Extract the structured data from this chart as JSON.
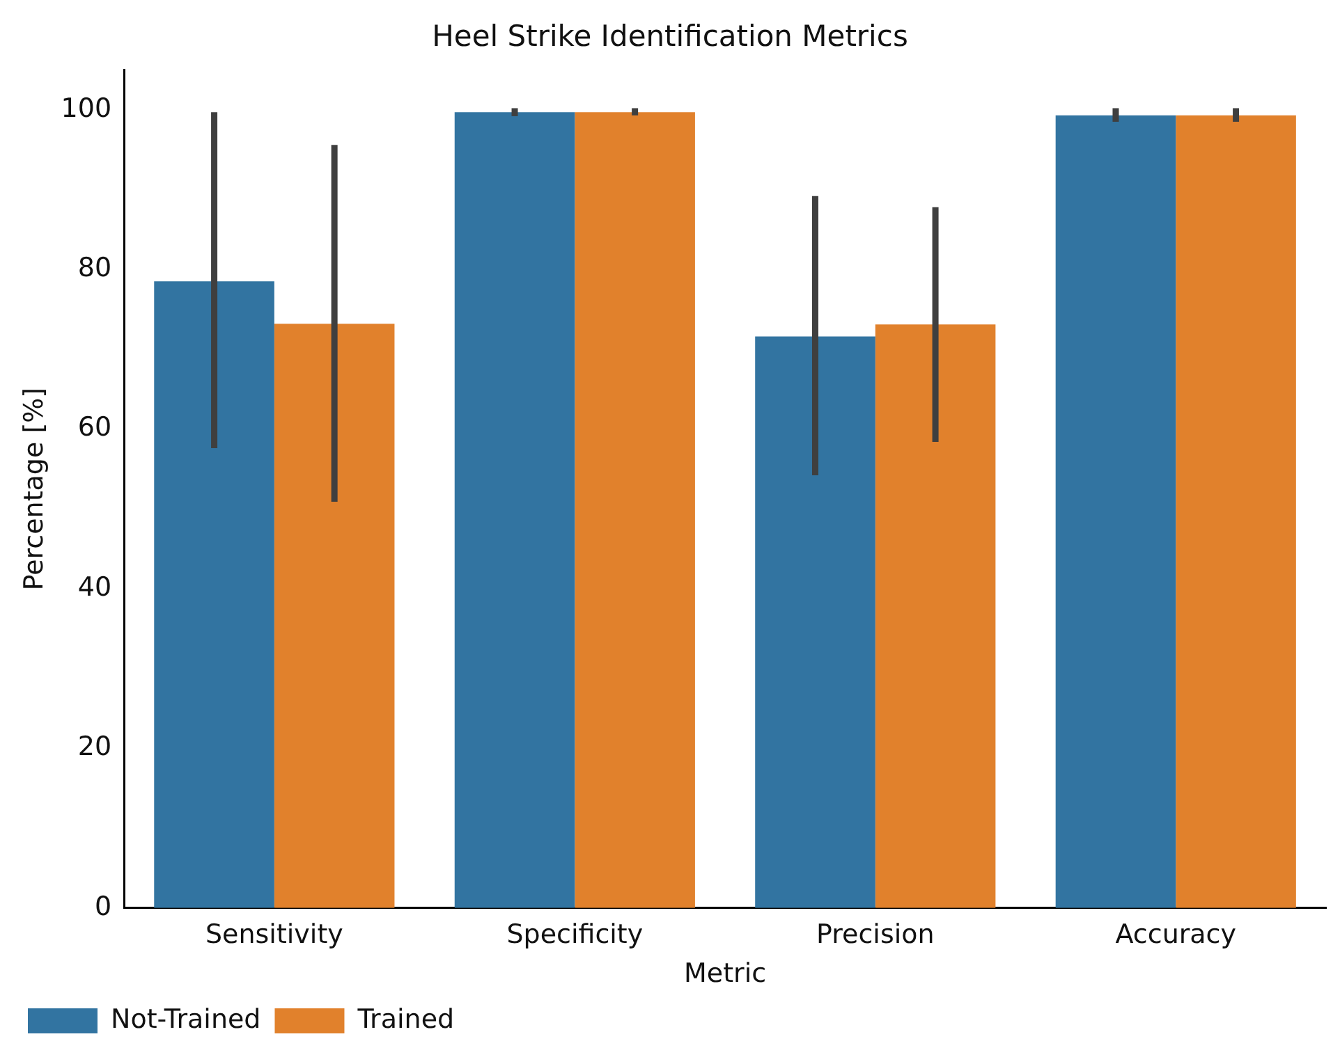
{
  "chart_data": {
    "type": "bar",
    "title": "Heel Strike Identification Metrics",
    "xlabel": "Metric",
    "ylabel": "Percentage [%]",
    "categories": [
      "Sensitivity",
      "Specificity",
      "Precision",
      "Accuracy"
    ],
    "series": [
      {
        "name": "Not-Trained",
        "color": "#3274a1",
        "values": [
          78.5,
          99.7,
          71.6,
          99.3
        ],
        "errors": [
          [
            57.6,
            99.7
          ],
          [
            99.2,
            100.2
          ],
          [
            54.2,
            89.2
          ],
          [
            98.5,
            100.2
          ]
        ]
      },
      {
        "name": "Trained",
        "color": "#e1812c",
        "values": [
          73.2,
          99.7,
          73.1,
          99.3
        ],
        "errors": [
          [
            50.9,
            95.6
          ],
          [
            99.3,
            100.2
          ],
          [
            58.4,
            87.8
          ],
          [
            98.5,
            100.2
          ]
        ]
      }
    ],
    "ylim": [
      0,
      105
    ],
    "yticks": [
      0,
      20,
      40,
      60,
      80,
      100
    ],
    "grid": false,
    "legend": "bottom left"
  }
}
